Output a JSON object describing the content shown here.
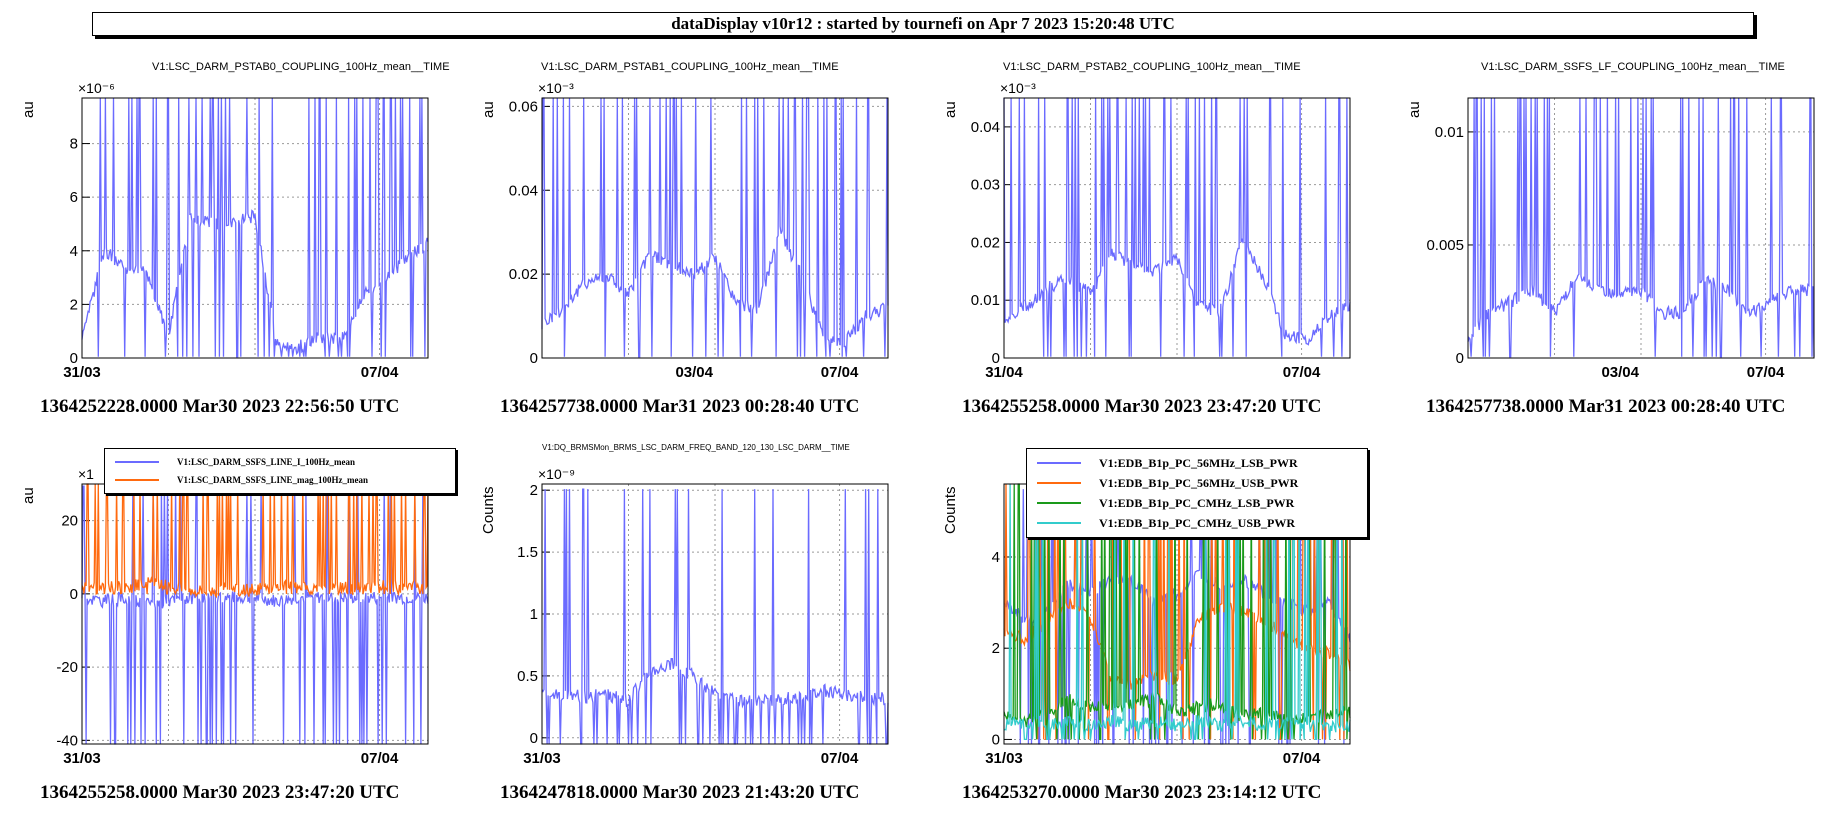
{
  "header": {
    "title": "dataDisplay v10r12 : started by tournefi on Apr  7 2023 15:20:48 UTC"
  },
  "colors": {
    "blue": "#6b6bff",
    "orange": "#ff6a0f",
    "green": "#1a9a1a",
    "cyan": "#33cccc",
    "grid": "#9a9a9a"
  },
  "chart_data": [
    {
      "type": "line",
      "title": "V1:LSC_DARM_PSTAB0_COUPLING_100Hz_mean__TIME",
      "ylabel": "au",
      "exponent": "×10⁻⁶",
      "x_ticks": [
        "31/03",
        "07/04"
      ],
      "y_ticks": [
        "0",
        "2",
        "4",
        "6",
        "8"
      ],
      "ylim": [
        0,
        9.7
      ],
      "footer": "1364252228.0000 Mar30 2023 22:56:50 UTC",
      "series": [
        {
          "color": "blue",
          "profile": [
            0.6,
            4.0,
            3.4,
            3.2,
            0.8,
            5.2,
            5.0,
            5.1,
            5.3,
            0.5,
            0.4,
            0.8,
            0.7,
            2.3,
            3.0,
            3.7,
            4.3
          ]
        }
      ]
    },
    {
      "type": "line",
      "title": "V1:LSC_DARM_PSTAB1_COUPLING_100Hz_mean__TIME",
      "ylabel": "au",
      "exponent": "×10⁻³",
      "x_ticks": [
        "03/04",
        "07/04"
      ],
      "y_ticks": [
        "0",
        "0.02",
        "0.04",
        "0.06"
      ],
      "ylim": [
        0,
        0.062
      ],
      "footer": "1364257738.0000 Mar31 2023 00:28:40 UTC",
      "series": [
        {
          "color": "blue",
          "profile": [
            0.008,
            0.012,
            0.018,
            0.02,
            0.015,
            0.025,
            0.022,
            0.02,
            0.024,
            0.013,
            0.012,
            0.03,
            0.02,
            0.005,
            0.004,
            0.01,
            0.012
          ]
        }
      ]
    },
    {
      "type": "line",
      "title": "V1:LSC_DARM_PSTAB2_COUPLING_100Hz_mean__TIME",
      "ylabel": "au",
      "exponent": "×10⁻³",
      "x_ticks": [
        "31/04",
        "07/04"
      ],
      "y_ticks": [
        "0",
        "0.01",
        "0.02",
        "0.03",
        "0.04"
      ],
      "ylim": [
        0,
        0.045
      ],
      "footer": "1364255258.0000 Mar30 2023 23:47:20 UTC",
      "series": [
        {
          "color": "blue",
          "profile": [
            0.006,
            0.009,
            0.012,
            0.014,
            0.011,
            0.018,
            0.016,
            0.015,
            0.017,
            0.009,
            0.008,
            0.02,
            0.014,
            0.004,
            0.003,
            0.007,
            0.009
          ]
        }
      ]
    },
    {
      "type": "line",
      "title": "V1:LSC_DARM_SSFS_LF_COUPLING_100Hz_mean__TIME",
      "ylabel": "au",
      "exponent": "",
      "x_ticks": [
        "03/04",
        "07/04"
      ],
      "y_ticks": [
        "0",
        "0.005",
        "0.01"
      ],
      "ylim": [
        0,
        0.0115
      ],
      "footer": "1364257738.0000 Mar31 2023 00:28:40 UTC",
      "series": [
        {
          "color": "blue",
          "profile": [
            0.001,
            0.002,
            0.0025,
            0.003,
            0.002,
            0.0035,
            0.003,
            0.0028,
            0.003,
            0.002,
            0.002,
            0.0035,
            0.003,
            0.002,
            0.0025,
            0.003,
            0.003
          ]
        }
      ]
    },
    {
      "type": "line",
      "title": "",
      "ylabel": "au",
      "exponent": "×1",
      "x_ticks": [
        "31/03",
        "07/04"
      ],
      "y_ticks": [
        "-40",
        "-20",
        "0",
        "20"
      ],
      "ylim": [
        -41,
        30
      ],
      "footer": "1364255258.0000 Mar30 2023 23:47:20 UTC",
      "legend": [
        "V1:LSC_DARM_SSFS_LINE_I_100Hz_mean",
        "V1:LSC_DARM_SSFS_LINE_mag_100Hz_mean"
      ],
      "series": [
        {
          "name": "V1:LSC_DARM_SSFS_LINE_I_100Hz_mean",
          "color": "blue",
          "profile": [
            -1,
            -2,
            -1,
            -3,
            -2,
            -1,
            -1,
            -1,
            -1,
            -2,
            -1,
            -1,
            -1,
            -1,
            -1,
            -1,
            -1
          ]
        },
        {
          "name": "V1:LSC_DARM_SSFS_LINE_mag_100Hz_mean",
          "color": "orange",
          "profile": [
            1.5,
            2,
            1.5,
            3,
            2,
            1,
            1,
            1,
            1,
            2,
            1.5,
            1,
            1.5,
            1.5,
            2,
            2,
            2
          ]
        }
      ]
    },
    {
      "type": "line",
      "title": "V1:DQ_BRMSMon_BRMS_LSC_DARM_FREQ_BAND_120_130_LSC_DARM__TIME",
      "ylabel": "Counts",
      "exponent": "×10⁻⁹",
      "x_ticks": [
        "31/03",
        "07/04"
      ],
      "y_ticks": [
        "0",
        "0.5",
        "1",
        "1.5",
        "2"
      ],
      "ylim": [
        -0.05,
        2.05
      ],
      "footer": "1364247818.0000 Mar30 2023 21:43:20 UTC",
      "series": [
        {
          "color": "blue",
          "profile": [
            0.35,
            0.35,
            0.33,
            0.35,
            0.3,
            0.55,
            0.6,
            0.5,
            0.35,
            0.3,
            0.3,
            0.3,
            0.35,
            0.38,
            0.35,
            0.32,
            0.32
          ]
        }
      ]
    },
    {
      "type": "line",
      "title": "",
      "ylabel": "Counts",
      "exponent": "",
      "x_ticks": [
        "31/03",
        "07/04"
      ],
      "y_ticks": [
        "0",
        "2",
        "4"
      ],
      "ylim": [
        -0.1,
        5.6
      ],
      "footer": "1364253270.0000 Mar30 2023 23:14:12 UTC",
      "legend": [
        "V1:EDB_B1p_PC_56MHz_LSB_PWR",
        "V1:EDB_B1p_PC_56MHz_USB_PWR",
        "V1:EDB_B1p_PC_CMHz_LSB_PWR",
        "V1:EDB_B1p_PC_CMHz_USB_PWR"
      ],
      "series": [
        {
          "name": "V1:EDB_B1p_PC_56MHz_LSB_PWR",
          "color": "blue",
          "profile": [
            3.0,
            2.6,
            2.8,
            3.4,
            3.2,
            3.6,
            3.4,
            3.0,
            3.2,
            3.6,
            3.4,
            3.5,
            3.2,
            3.0,
            2.8,
            3.0,
            2.2
          ]
        },
        {
          "name": "V1:EDB_B1p_PC_56MHz_USB_PWR",
          "color": "orange",
          "profile": [
            2.4,
            2.2,
            2.6,
            3.0,
            2.7,
            1.3,
            1.2,
            1.4,
            1.3,
            2.6,
            2.9,
            2.8,
            2.6,
            2.3,
            2.0,
            1.9,
            1.6
          ]
        },
        {
          "name": "V1:EDB_B1p_PC_CMHz_LSB_PWR",
          "color": "green",
          "profile": [
            0.5,
            0.4,
            0.6,
            0.9,
            0.7,
            0.7,
            0.8,
            0.9,
            0.6,
            0.7,
            0.8,
            0.5,
            0.6,
            0.4,
            0.5,
            0.5,
            0.6
          ]
        },
        {
          "name": "V1:EDB_B1p_PC_CMHz_USB_PWR",
          "color": "cyan",
          "profile": [
            0.3,
            0.4,
            0.3,
            0.4,
            0.3,
            0.4,
            0.3,
            0.4,
            0.3,
            0.4,
            0.3,
            0.4,
            0.3,
            0.4,
            0.3,
            0.3,
            0.3
          ]
        }
      ]
    }
  ]
}
